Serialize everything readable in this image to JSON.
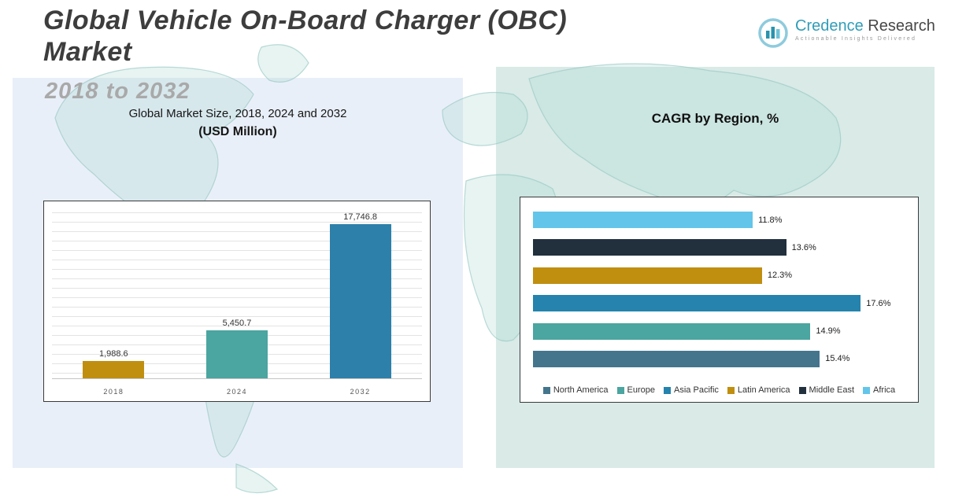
{
  "page": {
    "title_line1": "Global Vehicle On-Board Charger (OBC)",
    "title_line2": "Market",
    "subtitle": "2018 to 2032"
  },
  "logo": {
    "brand_primary": "Credence",
    "brand_secondary": "Research",
    "tagline": "Actionable Insights Delivered"
  },
  "chart_data": [
    {
      "type": "bar",
      "title": "Global Market Size, 2018, 2024 and 2032",
      "subtitle": "(USD Million)",
      "categories": [
        "2018",
        "2024",
        "2032"
      ],
      "values": [
        1988.6,
        5450.7,
        17746.8
      ],
      "value_labels": [
        "1,988.6",
        "5,450.7",
        "17,746.8"
      ],
      "colors": [
        "#c08f10",
        "#4ba5a0",
        "#2c80a9"
      ],
      "ylabel": "USD Million",
      "ylim": [
        0,
        19000
      ],
      "grid": true
    },
    {
      "type": "bar",
      "orientation": "horizontal",
      "title": "CAGR by Region, %",
      "categories": [
        "Africa",
        "Middle East",
        "Latin America",
        "Asia Pacific",
        "Europe",
        "North America"
      ],
      "values": [
        11.8,
        13.6,
        12.3,
        17.6,
        14.9,
        15.4
      ],
      "value_labels": [
        "11.8%",
        "13.6%",
        "12.3%",
        "17.6%",
        "14.9%",
        "15.4%"
      ],
      "colors": [
        "#63c5e9",
        "#22303e",
        "#c08f10",
        "#2583ad",
        "#4ba5a0",
        "#44758d"
      ],
      "xlim": [
        0,
        20
      ],
      "legend_position": "bottom",
      "legend": [
        {
          "label": "North America",
          "color": "#44758d"
        },
        {
          "label": "Europe",
          "color": "#4ba5a0"
        },
        {
          "label": "Asia Pacific",
          "color": "#2583ad"
        },
        {
          "label": "Latin America",
          "color": "#c08f10"
        },
        {
          "label": "Middle East",
          "color": "#22303e"
        },
        {
          "label": "Africa",
          "color": "#63c5e9"
        }
      ]
    }
  ]
}
